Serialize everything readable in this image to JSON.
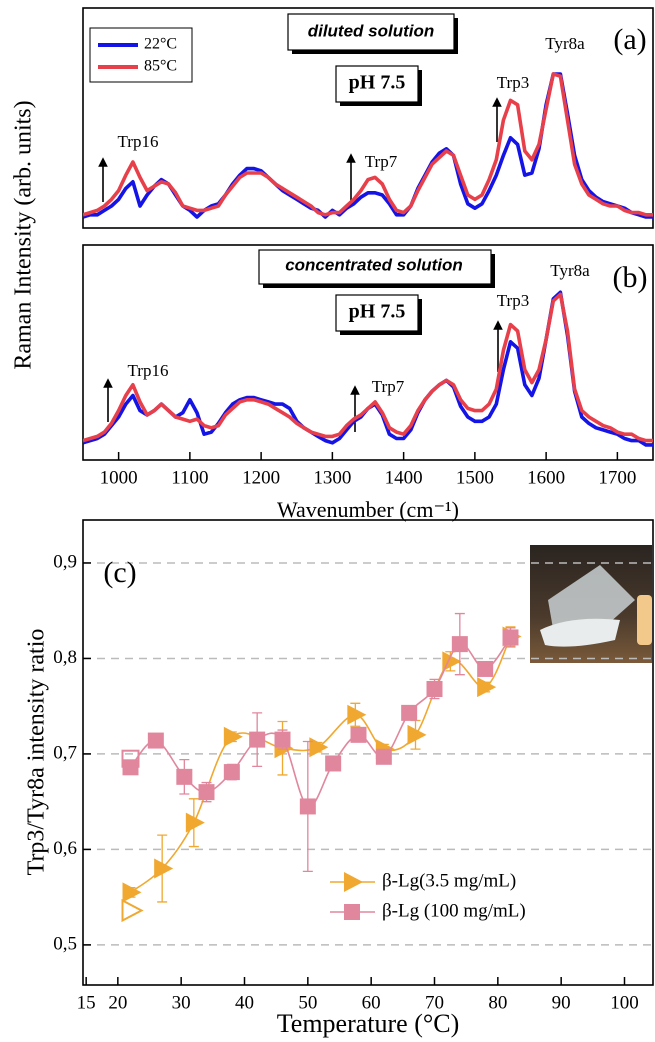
{
  "chart_data": [
    {
      "type": "line",
      "y_label": "Raman Intensity (arb. units)",
      "annotations": [
        "diluted solution",
        "pH 7.5",
        "Tyr8a",
        "Trp3",
        "Trp7",
        "Trp16",
        "(a)"
      ],
      "xlim": [
        950,
        1750
      ],
      "ylim": [
        0,
        100
      ],
      "x": [
        950,
        960,
        970,
        980,
        990,
        1000,
        1010,
        1020,
        1030,
        1040,
        1050,
        1060,
        1070,
        1080,
        1090,
        1100,
        1110,
        1120,
        1130,
        1140,
        1150,
        1160,
        1170,
        1180,
        1190,
        1200,
        1210,
        1220,
        1230,
        1240,
        1250,
        1260,
        1270,
        1280,
        1290,
        1300,
        1310,
        1320,
        1330,
        1340,
        1350,
        1360,
        1370,
        1380,
        1390,
        1400,
        1410,
        1420,
        1430,
        1440,
        1450,
        1460,
        1470,
        1480,
        1490,
        1500,
        1510,
        1520,
        1530,
        1540,
        1550,
        1560,
        1570,
        1580,
        1590,
        1600,
        1610,
        1620,
        1630,
        1640,
        1650,
        1660,
        1670,
        1680,
        1690,
        1700,
        1710,
        1720,
        1730,
        1740,
        1750
      ],
      "legend": "upper left",
      "series": [
        {
          "name": "22°C",
          "color": "#1414e6",
          "values": [
            5,
            6,
            6,
            8,
            10,
            13,
            18,
            21,
            10,
            15,
            19,
            22,
            20,
            15,
            10,
            8,
            5,
            8,
            10,
            11,
            15,
            20,
            24,
            27,
            27,
            26,
            23,
            20,
            17,
            15,
            13,
            11,
            9,
            8,
            5,
            8,
            6,
            9,
            11,
            14,
            16,
            16,
            15,
            11,
            6,
            6,
            10,
            18,
            24,
            30,
            34,
            36,
            33,
            20,
            11,
            9,
            11,
            17,
            24,
            33,
            41,
            38,
            24,
            25,
            36,
            56,
            70,
            70,
            52,
            33,
            22,
            17,
            14,
            12,
            11,
            10,
            9,
            7,
            6,
            5,
            5
          ]
        },
        {
          "name": "85°C",
          "color": "#e8404a",
          "values": [
            6,
            7,
            8,
            10,
            13,
            17,
            24,
            30,
            23,
            17,
            19,
            21,
            20,
            16,
            10,
            9,
            8,
            8,
            9,
            10,
            15,
            19,
            23,
            25,
            25,
            25,
            23,
            20,
            18,
            16,
            14,
            12,
            10,
            7,
            6,
            7,
            7,
            10,
            13,
            17,
            22,
            23,
            20,
            13,
            8,
            7,
            10,
            17,
            23,
            29,
            32,
            35,
            33,
            24,
            15,
            13,
            15,
            22,
            31,
            49,
            58,
            56,
            35,
            31,
            38,
            54,
            70,
            69,
            49,
            29,
            20,
            15,
            13,
            11,
            10,
            10,
            8,
            7,
            7,
            6,
            6
          ]
        }
      ]
    },
    {
      "type": "line",
      "x_label": "Wavenumber (cm⁻¹)",
      "annotations": [
        "concentrated solution",
        "pH 7.5",
        "Tyr8a",
        "Trp3",
        "Trp7",
        "Trp16",
        "(b)"
      ],
      "xlim": [
        950,
        1750
      ],
      "ylim": [
        0,
        100
      ],
      "xticks": [
        1000,
        1100,
        1200,
        1300,
        1400,
        1500,
        1600,
        1700
      ],
      "x": [
        950,
        960,
        970,
        980,
        990,
        1000,
        1010,
        1020,
        1030,
        1040,
        1050,
        1060,
        1070,
        1080,
        1090,
        1100,
        1110,
        1120,
        1130,
        1140,
        1150,
        1160,
        1170,
        1180,
        1190,
        1200,
        1210,
        1220,
        1230,
        1240,
        1250,
        1260,
        1270,
        1280,
        1290,
        1300,
        1310,
        1320,
        1330,
        1340,
        1350,
        1360,
        1370,
        1380,
        1390,
        1400,
        1410,
        1420,
        1430,
        1440,
        1450,
        1460,
        1470,
        1480,
        1490,
        1500,
        1510,
        1520,
        1530,
        1540,
        1550,
        1560,
        1570,
        1580,
        1590,
        1600,
        1610,
        1620,
        1630,
        1640,
        1650,
        1660,
        1670,
        1680,
        1690,
        1700,
        1710,
        1720,
        1730,
        1740,
        1750
      ],
      "series": [
        {
          "color": "#1414e6",
          "values": [
            8,
            9,
            10,
            12,
            16,
            20,
            26,
            30,
            23,
            21,
            23,
            26,
            23,
            20,
            22,
            28,
            22,
            12,
            13,
            17,
            22,
            26,
            28,
            29,
            29,
            28,
            27,
            26,
            26,
            24,
            18,
            15,
            13,
            11,
            9,
            8,
            10,
            14,
            18,
            20,
            24,
            26,
            21,
            12,
            10,
            10,
            14,
            22,
            28,
            32,
            35,
            37,
            34,
            25,
            20,
            18,
            18,
            20,
            26,
            42,
            55,
            52,
            35,
            30,
            38,
            56,
            75,
            78,
            58,
            32,
            20,
            17,
            15,
            14,
            13,
            12,
            10,
            9,
            9,
            7,
            7
          ]
        },
        {
          "color": "#e8404a",
          "values": [
            9,
            10,
            11,
            13,
            17,
            23,
            30,
            35,
            27,
            21,
            23,
            26,
            23,
            20,
            19,
            18,
            19,
            16,
            15,
            16,
            21,
            24,
            27,
            28,
            28,
            27,
            26,
            24,
            22,
            20,
            17,
            15,
            13,
            12,
            11,
            11,
            12,
            16,
            19,
            21,
            24,
            27,
            22,
            15,
            13,
            12,
            16,
            23,
            28,
            32,
            35,
            37,
            35,
            28,
            24,
            23,
            23,
            26,
            33,
            51,
            63,
            60,
            42,
            36,
            42,
            56,
            74,
            77,
            60,
            33,
            23,
            20,
            18,
            16,
            15,
            13,
            12,
            12,
            10,
            9,
            9
          ]
        }
      ]
    },
    {
      "type": "scatter",
      "x_label": "Temperature (°C)",
      "y_label": "Trp3/Tyr8a intensity ratio",
      "annotations": [
        "(c)"
      ],
      "xlim": [
        14.5,
        104.5
      ],
      "ylim": [
        0.458,
        0.945
      ],
      "xticks": [
        15,
        20,
        30,
        40,
        50,
        60,
        70,
        80,
        90,
        100
      ],
      "yticks": [
        {
          "value": 0.5,
          "label": "0,5"
        },
        {
          "value": 0.6,
          "label": "0,6"
        },
        {
          "value": 0.7,
          "label": "0,7"
        },
        {
          "value": 0.8,
          "label": "0,8"
        },
        {
          "value": 0.9,
          "label": "0,9"
        }
      ],
      "grid": true,
      "legend": "lower center",
      "series": [
        {
          "name": "β-Lg(3.5 mg/mL)",
          "color": "#f0a830",
          "marker": "triangle-right",
          "smooth": true,
          "x": [
            22,
            27,
            32,
            38,
            46,
            51.5,
            57.5,
            62,
            67,
            72.5,
            78,
            82
          ],
          "values": [
            0.555,
            0.58,
            0.628,
            0.718,
            0.706,
            0.707,
            0.741,
            0.705,
            0.72,
            0.797,
            0.77,
            0.823
          ],
          "errors": [
            0.005,
            0.035,
            0.025,
            0.005,
            0.028,
            0.005,
            0.012,
            0.005,
            0.015,
            0.01,
            0.005,
            0.01
          ]
        },
        {
          "name": "β-Lg (100 mg/mL)",
          "color": "#e0879d",
          "marker": "square",
          "smooth": true,
          "x": [
            22,
            26,
            30.5,
            34,
            38,
            42,
            46,
            50,
            54,
            58,
            62,
            66,
            70,
            74,
            78,
            82
          ],
          "values": [
            0.686,
            0.714,
            0.676,
            0.66,
            0.681,
            0.715,
            0.715,
            0.645,
            0.69,
            0.72,
            0.697,
            0.743,
            0.768,
            0.815,
            0.789,
            0.822
          ],
          "errors": [
            0.005,
            0.005,
            0.018,
            0.01,
            0.008,
            0.028,
            0.01,
            0.068,
            0.005,
            0.005,
            0.005,
            0.005,
            0.01,
            0.032,
            0.005,
            0.01
          ]
        },
        {
          "color": "#f0a830",
          "marker": "triangle-right",
          "hollow": true,
          "x": [
            22
          ],
          "values": [
            0.536
          ]
        },
        {
          "color": "#e0879d",
          "marker": "square",
          "hollow": true,
          "x": [
            22
          ],
          "values": [
            0.695
          ]
        }
      ]
    }
  ]
}
